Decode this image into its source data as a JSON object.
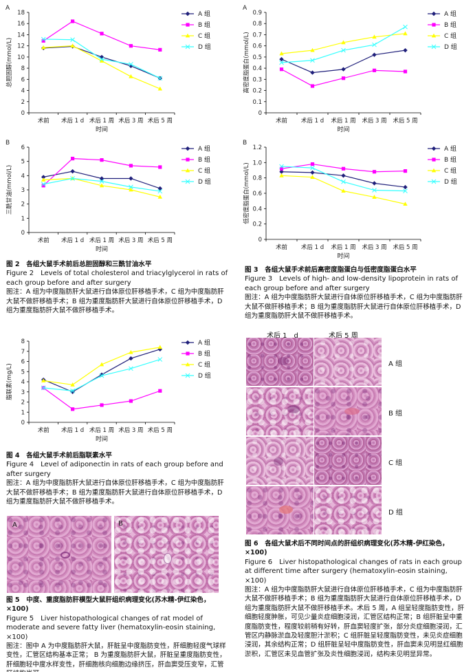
{
  "colors": {
    "A": "#1f1f7a",
    "B": "#ff00ff",
    "C": "#ffff00",
    "D": "#33ffff"
  },
  "charts": [
    {
      "panel": "A",
      "type": "line",
      "ylabel": "总胆固醇(mmol/L)",
      "xlabel": "时间",
      "categories": [
        "术前",
        "术后 1 d",
        "术后 1 周",
        "术后 3 周",
        "术后 5 周"
      ],
      "ylim": [
        0,
        18
      ],
      "yticks": [
        0,
        2,
        4,
        6,
        8,
        10,
        12,
        14,
        16,
        18
      ],
      "series": [
        {
          "name": "A 组",
          "key": "A",
          "values": [
            11.6,
            11.9,
            10.0,
            8.4,
            6.2
          ]
        },
        {
          "name": "B 组",
          "key": "B",
          "values": [
            12.9,
            16.4,
            14.2,
            12.0,
            11.3
          ]
        },
        {
          "name": "C 组",
          "key": "C",
          "values": [
            11.7,
            12.0,
            9.3,
            6.5,
            4.3
          ]
        },
        {
          "name": "D 组",
          "key": "D",
          "values": [
            13.2,
            13.1,
            9.6,
            8.7,
            6.2
          ]
        }
      ]
    },
    {
      "panel": "A",
      "type": "line",
      "ylabel": "高密度脂蛋白(mmol/L)",
      "xlabel": "时间",
      "categories": [
        "术前",
        "术后 1 d",
        "术后 1 周",
        "术后 3 周",
        "术后 5 周"
      ],
      "ylim": [
        0,
        0.9
      ],
      "yticks": [
        0,
        0.1,
        0.2,
        0.3,
        0.4,
        0.5,
        0.6,
        0.7,
        0.8,
        0.9
      ],
      "series": [
        {
          "name": "A 组",
          "key": "A",
          "values": [
            0.48,
            0.36,
            0.39,
            0.52,
            0.56
          ]
        },
        {
          "name": "B 组",
          "key": "B",
          "values": [
            0.39,
            0.24,
            0.31,
            0.38,
            0.37
          ]
        },
        {
          "name": "C 组",
          "key": "C",
          "values": [
            0.53,
            0.56,
            0.63,
            0.68,
            0.71
          ]
        },
        {
          "name": "D 组",
          "key": "D",
          "values": [
            0.45,
            0.47,
            0.56,
            0.61,
            0.77
          ]
        }
      ]
    },
    {
      "panel": "B",
      "type": "line",
      "ylabel": "三酰甘油(mmol/L)",
      "xlabel": "时间",
      "categories": [
        "术前",
        "术后 1 d",
        "术后 1 周",
        "术后 3 周",
        "术后 5 周"
      ],
      "ylim": [
        0,
        6
      ],
      "yticks": [
        0,
        1,
        2,
        3,
        4,
        5,
        6
      ],
      "series": [
        {
          "name": "A 组",
          "key": "A",
          "values": [
            3.9,
            4.3,
            3.8,
            3.8,
            3.1
          ]
        },
        {
          "name": "B 组",
          "key": "B",
          "values": [
            3.3,
            5.2,
            5.1,
            4.7,
            4.6
          ]
        },
        {
          "name": "C 组",
          "key": "C",
          "values": [
            3.7,
            3.8,
            3.3,
            3.0,
            2.5
          ]
        },
        {
          "name": "D 组",
          "key": "D",
          "values": [
            3.4,
            3.8,
            3.6,
            3.2,
            2.9
          ]
        }
      ]
    },
    {
      "panel": "B",
      "type": "line",
      "ylabel": "低密度脂蛋白(mmol/L)",
      "xlabel": "时间",
      "categories": [
        "术前",
        "术后 1 d",
        "术后 1 周",
        "术后 3 周",
        "术后 5 周"
      ],
      "ylim": [
        0,
        1.2
      ],
      "yticks": [
        0,
        0.2,
        0.4,
        0.6,
        0.8,
        1.0,
        1.2
      ],
      "ytickLabels": [
        "0",
        "0.2",
        "0.4",
        "0.6",
        "0.8",
        "1.0",
        "1.2"
      ],
      "series": [
        {
          "name": "A 组",
          "key": "A",
          "values": [
            0.88,
            0.87,
            0.83,
            0.73,
            0.68
          ]
        },
        {
          "name": "B 组",
          "key": "B",
          "values": [
            0.92,
            0.98,
            0.92,
            0.88,
            0.89
          ]
        },
        {
          "name": "C 组",
          "key": "C",
          "values": [
            0.83,
            0.81,
            0.63,
            0.55,
            0.46
          ]
        },
        {
          "name": "D 组",
          "key": "D",
          "values": [
            0.95,
            0.93,
            0.75,
            0.64,
            0.63
          ]
        }
      ]
    },
    {
      "panel": "",
      "type": "line",
      "ylabel": "脂联素(mg/L)",
      "xlabel": "时间",
      "categories": [
        "术前",
        "术后 1 d",
        "术后 1 周",
        "术后 3 周",
        "术后 5 周"
      ],
      "ylim": [
        0,
        8
      ],
      "yticks": [
        0,
        1,
        2,
        3,
        4,
        5,
        6,
        7,
        8
      ],
      "series": [
        {
          "name": "A 组",
          "key": "A",
          "values": [
            4.2,
            3.0,
            4.7,
            6.3,
            7.2
          ]
        },
        {
          "name": "B 组",
          "key": "B",
          "values": [
            3.4,
            1.3,
            1.7,
            2.1,
            3.1
          ]
        },
        {
          "name": "C 组",
          "key": "C",
          "values": [
            4.1,
            3.7,
            5.7,
            6.9,
            7.4
          ]
        },
        {
          "name": "D 组",
          "key": "D",
          "values": [
            3.4,
            3.1,
            4.6,
            5.3,
            6.2
          ]
        }
      ]
    }
  ],
  "captions": {
    "fig2": {
      "zh": "图 2　各组大鼠手术前后总胆固醇和三酰甘油水平",
      "en": "Figure 2　Levels of total cholesterol and triacylglycerol in rats of each group before and after surgery",
      "note": "图注：A 组为中度脂肪肝大鼠进行自体原位肝移植手术，C 组为中度脂肪肝大鼠不做肝移植手术；B 组为重度脂肪肝大鼠进行自体原位肝移植手术，D 组为重度脂肪肝大鼠不做肝移植手术。"
    },
    "fig3": {
      "zh": "图 3　各组大鼠手术前后高密度脂蛋白与低密度脂蛋白水平",
      "en": "Figure 3　Levels of high- and low-density lipoprotein in rats of each group before and after surgery",
      "note": "图注：A 组为中度脂肪肝大鼠进行自体原位肝移植手术，C 组为中度脂肪肝大鼠不做肝移植手术；B 组为重度脂肪肝大鼠进行自体原位肝移植手术，D 组为重度脂肪肝大鼠不做肝移植手术。"
    },
    "fig4": {
      "zh": "图 4　各组大鼠手术前后脂联素水平",
      "en": "Figure 4　Level of adiponectin in rats of each group before and after surgery",
      "note": "图注：A 组为中度脂肪肝大鼠进行自体原位肝移植手术，C 组为中度脂肪肝大鼠不做肝移植手术；B 组为重度脂肪肝大鼠进行自体原位肝移植手术，D 组为重度脂肪肝大鼠不做肝移植手术。"
    },
    "fig5": {
      "zh": "图 5　中度、重度脂肪肝模型大鼠肝组织病理变化(苏木精-伊红染色，×100)",
      "en": "Figure 5　Liver histopathological changes of rat model of moderate and severe fatty liver (hematoxylin-eosin staining, ×100)",
      "note": "图注：图中 A 为中度脂肪肝大鼠，肝脏呈中度脂肪变性，肝细胞轻度气球样变性，汇管区结构基本正常； B 为重度脂肪肝大鼠，肝脏呈重度脂肪变性，肝细胞轻中度水样变性，肝细胞核向细胞边缘挤压，肝血窦受压变窄，汇管区结构尚可。"
    },
    "fig6": {
      "zh": "图 6　各组大鼠术后不同时间点的肝组织病理变化(苏木精-伊红染色，×100)",
      "en": "Figure 6　Liver histopathological changes of rats in each group at different time after surgery (hematoxylin-eosin staining, ×100)",
      "note": "图注：A 组为中度脂肪肝大鼠进行自体原位肝移植手术，C 组为中度脂肪肝大鼠不做肝移植手术；B 组为重度脂肪肝大鼠进行自体原位肝移植手术，D 组为重度脂肪肝大鼠不做肝移植手术。术后 5 周，A 组呈轻度脂肪变性，肝细胞轻度肿胀，可见少量炎症细胞浸润，汇管区结构正常；B 组肝脏呈中重度脂肪变性，程度较前稍有好转，肝血窦轻度扩张，部分炎症细胞浸润，汇管区内静脉淤血及轻度胆汁淤积；C 组肝脏呈轻度脂肪变性，未见炎症细胞浸润，其余结构正常；D 组肝脏呈轻中度脂肪变性，肝血窦未见明显红细胞淤积，汇管区未见血管扩张及炎性细胞浸润，结构未见明显异常。"
    }
  },
  "fig5_labels": {
    "left": "A",
    "right": "B"
  },
  "fig6_labels": {
    "col1": "术后 1　d",
    "col2": "术后 5 周",
    "rows": [
      "A 组",
      "B 组",
      "C 组",
      "D 组"
    ]
  }
}
